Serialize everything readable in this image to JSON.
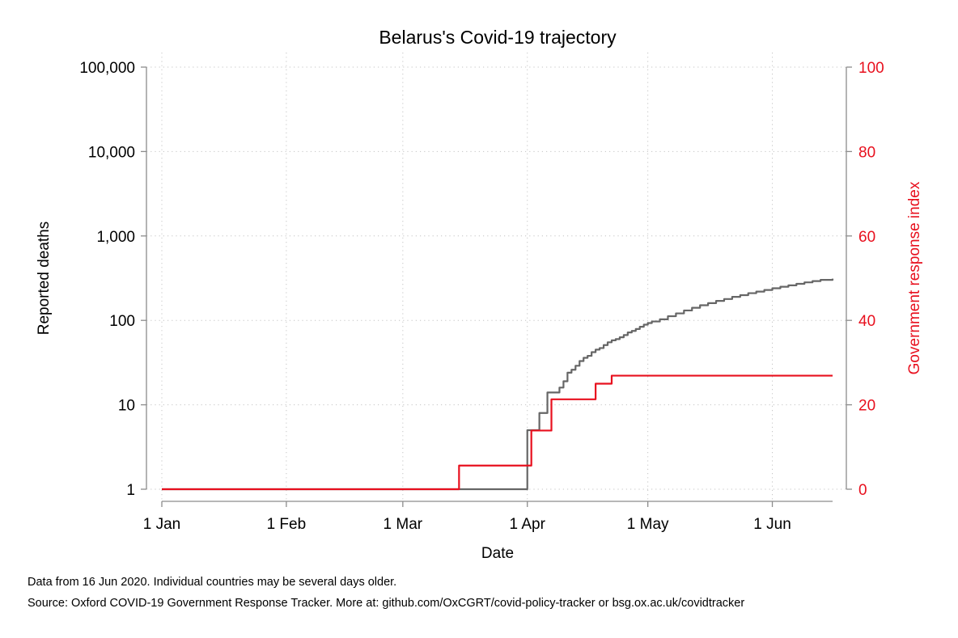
{
  "chart_data": {
    "type": "line",
    "title": "Belarus's Covid-19 trajectory",
    "xlabel": "Date",
    "ylabel_left": "Reported deaths",
    "ylabel_right": "Government response index",
    "x_ticks": [
      {
        "label": "1 Jan",
        "date": "2020-01-01"
      },
      {
        "label": "1 Feb",
        "date": "2020-02-01"
      },
      {
        "label": "1 Mar",
        "date": "2020-03-01"
      },
      {
        "label": "1 Apr",
        "date": "2020-04-01"
      },
      {
        "label": "1 May",
        "date": "2020-05-01"
      },
      {
        "label": "1 Jun",
        "date": "2020-06-01"
      }
    ],
    "xlim": [
      "2020-01-01",
      "2020-06-16"
    ],
    "y_left": {
      "scale": "log",
      "ylim": [
        1,
        100000
      ],
      "ticks": [
        {
          "value": 1,
          "label": "1"
        },
        {
          "value": 10,
          "label": "10"
        },
        {
          "value": 100,
          "label": "100"
        },
        {
          "value": 1000,
          "label": "1,000"
        },
        {
          "value": 10000,
          "label": "10,000"
        },
        {
          "value": 100000,
          "label": "100,000"
        }
      ]
    },
    "y_right": {
      "scale": "linear",
      "ylim": [
        0,
        100
      ],
      "ticks": [
        {
          "value": 0,
          "label": "0"
        },
        {
          "value": 20,
          "label": "20"
        },
        {
          "value": 40,
          "label": "40"
        },
        {
          "value": 60,
          "label": "60"
        },
        {
          "value": 80,
          "label": "80"
        },
        {
          "value": 100,
          "label": "100"
        }
      ]
    },
    "grid": true,
    "series": [
      {
        "axis": "left",
        "color": "#666666",
        "step": true,
        "points": [
          [
            "2020-01-01",
            1
          ],
          [
            "2020-03-31",
            1
          ],
          [
            "2020-04-01",
            5
          ],
          [
            "2020-04-03",
            5
          ],
          [
            "2020-04-04",
            8
          ],
          [
            "2020-04-06",
            14
          ],
          [
            "2020-04-08",
            14
          ],
          [
            "2020-04-09",
            16
          ],
          [
            "2020-04-10",
            19
          ],
          [
            "2020-04-11",
            24
          ],
          [
            "2020-04-12",
            26
          ],
          [
            "2020-04-13",
            29
          ],
          [
            "2020-04-14",
            33
          ],
          [
            "2020-04-15",
            36
          ],
          [
            "2020-04-16",
            38
          ],
          [
            "2020-04-17",
            42
          ],
          [
            "2020-04-18",
            45
          ],
          [
            "2020-04-19",
            47
          ],
          [
            "2020-04-20",
            51
          ],
          [
            "2020-04-21",
            55
          ],
          [
            "2020-04-22",
            58
          ],
          [
            "2020-04-23",
            60
          ],
          [
            "2020-04-24",
            63
          ],
          [
            "2020-04-25",
            67
          ],
          [
            "2020-04-26",
            72
          ],
          [
            "2020-04-27",
            75
          ],
          [
            "2020-04-28",
            79
          ],
          [
            "2020-04-29",
            84
          ],
          [
            "2020-04-30",
            89
          ],
          [
            "2020-05-01",
            93
          ],
          [
            "2020-05-02",
            97
          ],
          [
            "2020-05-04",
            103
          ],
          [
            "2020-05-06",
            112
          ],
          [
            "2020-05-08",
            121
          ],
          [
            "2020-05-10",
            131
          ],
          [
            "2020-05-12",
            141
          ],
          [
            "2020-05-14",
            151
          ],
          [
            "2020-05-16",
            160
          ],
          [
            "2020-05-18",
            170
          ],
          [
            "2020-05-20",
            179
          ],
          [
            "2020-05-22",
            190
          ],
          [
            "2020-05-24",
            199
          ],
          [
            "2020-05-26",
            210
          ],
          [
            "2020-05-28",
            219
          ],
          [
            "2020-05-30",
            229
          ],
          [
            "2020-06-01",
            240
          ],
          [
            "2020-06-03",
            250
          ],
          [
            "2020-06-05",
            260
          ],
          [
            "2020-06-07",
            271
          ],
          [
            "2020-06-09",
            282
          ],
          [
            "2020-06-11",
            292
          ],
          [
            "2020-06-13",
            302
          ],
          [
            "2020-06-16",
            312
          ]
        ]
      },
      {
        "axis": "right",
        "color": "#e8101e",
        "step": true,
        "points": [
          [
            "2020-01-01",
            0
          ],
          [
            "2020-03-14",
            0
          ],
          [
            "2020-03-15",
            5.6
          ],
          [
            "2020-04-01",
            5.6
          ],
          [
            "2020-04-02",
            13.9
          ],
          [
            "2020-04-06",
            13.9
          ],
          [
            "2020-04-07",
            21.3
          ],
          [
            "2020-04-17",
            21.3
          ],
          [
            "2020-04-18",
            25
          ],
          [
            "2020-04-21",
            25
          ],
          [
            "2020-04-22",
            26.9
          ],
          [
            "2020-06-16",
            26.9
          ]
        ]
      }
    ]
  },
  "notes": {
    "line1": "Data from 16 Jun 2020. Individual countries may be several days older.",
    "line2": "Source: Oxford COVID-19 Government Response Tracker. More at: github.com/OxCGRT/covid-policy-tracker or bsg.ox.ac.uk/covidtracker"
  }
}
